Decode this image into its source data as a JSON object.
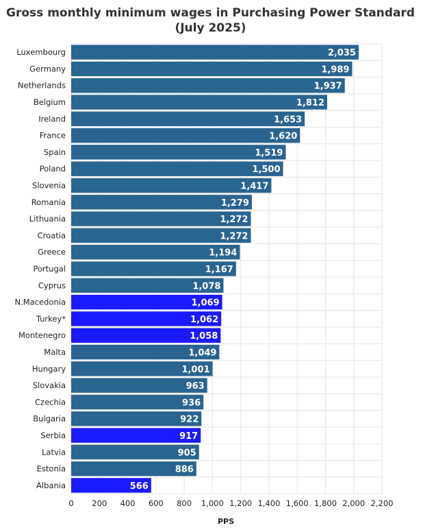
{
  "chart_data": {
    "type": "bar",
    "orientation": "horizontal",
    "title_line1": "Gross monthly minimum wages in Purchasing Power Standard",
    "title_line2": "(July 2025)",
    "xlabel": "PPS",
    "xlim": [
      0,
      2200
    ],
    "xticks": [
      0,
      200,
      400,
      600,
      800,
      1000,
      1200,
      1400,
      1600,
      1800,
      2000,
      2200
    ],
    "xtick_labels": [
      "0",
      "200",
      "400",
      "600",
      "800",
      "1,000",
      "1,200",
      "1,400",
      "1,600",
      "1,800",
      "2,000",
      "2,200"
    ],
    "grid": true,
    "bars": [
      {
        "category": "Luxembourg",
        "value": 2035,
        "label": "2,035",
        "highlight": false
      },
      {
        "category": "Germany",
        "value": 1989,
        "label": "1,989",
        "highlight": false
      },
      {
        "category": "Netherlands",
        "value": 1937,
        "label": "1,937",
        "highlight": false
      },
      {
        "category": "Belgium",
        "value": 1812,
        "label": "1,812",
        "highlight": false
      },
      {
        "category": "Ireland",
        "value": 1653,
        "label": "1,653",
        "highlight": false
      },
      {
        "category": "France",
        "value": 1620,
        "label": "1,620",
        "highlight": false
      },
      {
        "category": "Spain",
        "value": 1519,
        "label": "1,519",
        "highlight": false
      },
      {
        "category": "Poland",
        "value": 1500,
        "label": "1,500",
        "highlight": false
      },
      {
        "category": "Slovenia",
        "value": 1417,
        "label": "1,417",
        "highlight": false
      },
      {
        "category": "Romania",
        "value": 1279,
        "label": "1,279",
        "highlight": false
      },
      {
        "category": "Lithuania",
        "value": 1272,
        "label": "1,272",
        "highlight": false
      },
      {
        "category": "Croatia",
        "value": 1272,
        "label": "1,272",
        "highlight": false
      },
      {
        "category": "Greece",
        "value": 1194,
        "label": "1,194",
        "highlight": false
      },
      {
        "category": "Portugal",
        "value": 1167,
        "label": "1,167",
        "highlight": false
      },
      {
        "category": "Cyprus",
        "value": 1078,
        "label": "1,078",
        "highlight": false
      },
      {
        "category": "N.Macedonia",
        "value": 1069,
        "label": "1,069",
        "highlight": true
      },
      {
        "category": "Turkey*",
        "value": 1062,
        "label": "1,062",
        "highlight": true
      },
      {
        "category": "Montenegro",
        "value": 1058,
        "label": "1,058",
        "highlight": true
      },
      {
        "category": "Malta",
        "value": 1049,
        "label": "1,049",
        "highlight": false
      },
      {
        "category": "Hungary",
        "value": 1001,
        "label": "1,001",
        "highlight": false
      },
      {
        "category": "Slovakia",
        "value": 963,
        "label": "963",
        "highlight": false
      },
      {
        "category": "Czechia",
        "value": 936,
        "label": "936",
        "highlight": false
      },
      {
        "category": "Bulgaria",
        "value": 922,
        "label": "922",
        "highlight": false
      },
      {
        "category": "Serbia",
        "value": 917,
        "label": "917",
        "highlight": true
      },
      {
        "category": "Latvia",
        "value": 905,
        "label": "905",
        "highlight": false
      },
      {
        "category": "Estonia",
        "value": 886,
        "label": "886",
        "highlight": false
      },
      {
        "category": "Albania",
        "value": 566,
        "label": "566",
        "highlight": true
      }
    ],
    "colors": {
      "default_bar": "#2a6591",
      "highlight_bar": "#1a1aff",
      "grid": "#e6e6e6",
      "value_text": "#ffffff"
    }
  }
}
